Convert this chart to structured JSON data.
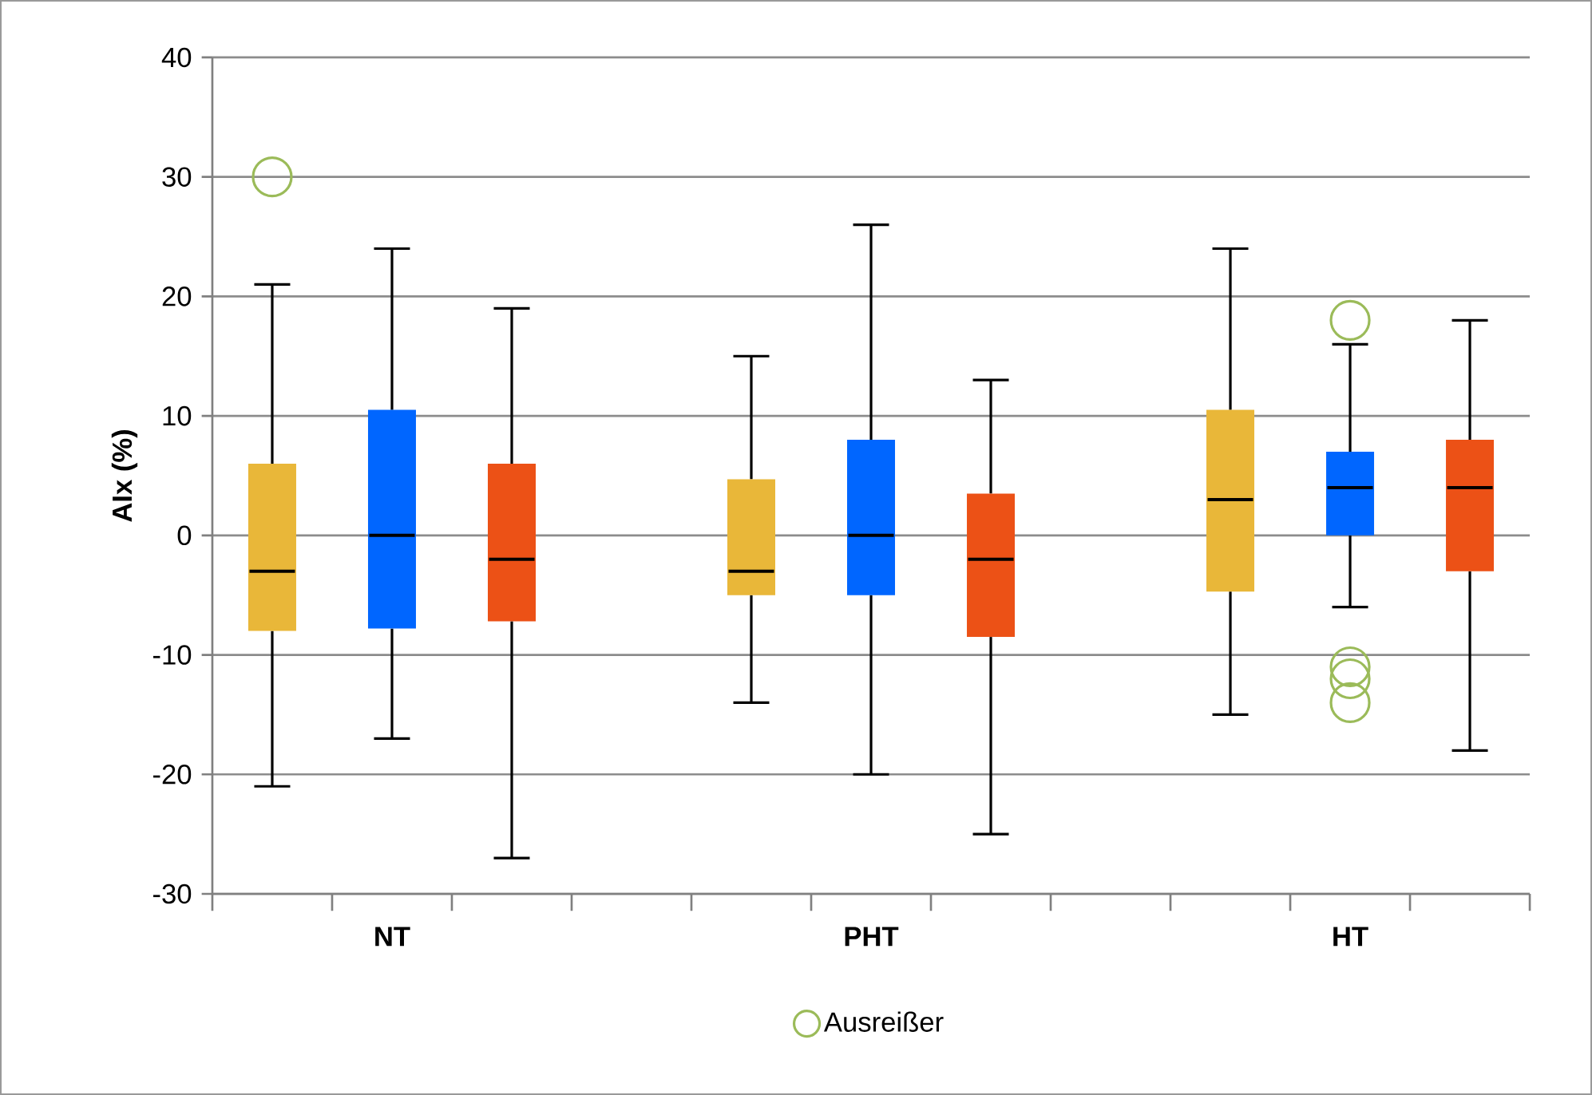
{
  "chart_data": {
    "type": "box",
    "ylabel": "AIx (%)",
    "categories": [
      "NT",
      "PHT",
      "HT"
    ],
    "series": [
      {
        "color": "#e9b739",
        "boxes": [
          {
            "low": -21,
            "q1": -8,
            "median": -3,
            "q3": 6,
            "high": 21,
            "outliers": [
              30
            ]
          },
          {
            "low": -14,
            "q1": -5,
            "median": -3,
            "q3": 4.7,
            "high": 15
          },
          {
            "low": -15,
            "q1": -4.7,
            "median": 3,
            "q3": 10.5,
            "high": 24
          }
        ]
      },
      {
        "color": "#0066ff",
        "boxes": [
          {
            "low": -17,
            "q1": -7.8,
            "median": 0,
            "q3": 10.5,
            "high": 24
          },
          {
            "low": -20,
            "q1": -5,
            "median": 0,
            "q3": 8,
            "high": 26
          },
          {
            "low": -6,
            "q1": 0,
            "median": 4,
            "q3": 7,
            "high": 16,
            "outliers": [
              18,
              -11,
              -12,
              -14
            ]
          }
        ]
      },
      {
        "color": "#ec5116",
        "boxes": [
          {
            "low": -27,
            "q1": -7.2,
            "median": -2,
            "q3": 6,
            "high": 19
          },
          {
            "low": -25,
            "q1": -8.5,
            "median": -2,
            "q3": 3.5,
            "high": 13
          },
          {
            "low": -18,
            "q1": -3,
            "median": 4,
            "q3": 8,
            "high": 18
          }
        ]
      },
      {
        "type": "scatter",
        "name": "Ausreißer",
        "color": "#9bbb59",
        "marker": "circle",
        "values": [
          null,
          null,
          null
        ]
      }
    ],
    "ylim": [
      -30,
      40
    ],
    "yticks": [
      -30,
      -20,
      -10,
      0,
      10,
      20,
      30,
      40
    ],
    "grid": "y",
    "legend": "bottom"
  }
}
